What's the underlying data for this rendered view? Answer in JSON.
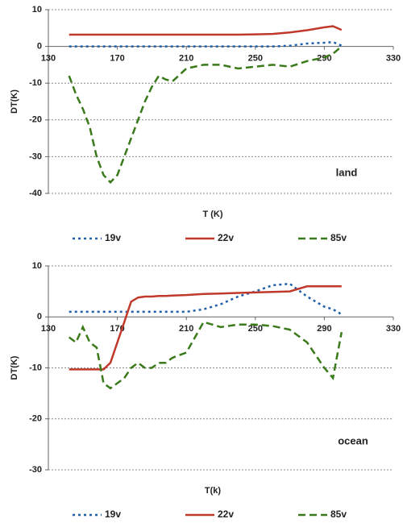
{
  "chart_data": [
    {
      "type": "line",
      "x_label": "T (K)",
      "y_label": "DT(K)",
      "annotation": "land",
      "xlim": [
        130,
        330
      ],
      "xticks": [
        130,
        170,
        210,
        250,
        290,
        330
      ],
      "ylim": [
        -40,
        10
      ],
      "yticks": [
        -40,
        -30,
        -20,
        -10,
        0,
        10
      ],
      "grid": true,
      "x": [
        142,
        146,
        150,
        154,
        158,
        162,
        166,
        170,
        174,
        178,
        182,
        186,
        190,
        194,
        198,
        202,
        210,
        220,
        230,
        240,
        250,
        260,
        270,
        280,
        290,
        295,
        300
      ],
      "series": [
        {
          "name": "19v",
          "color": "#1f5fa8",
          "style": "dotted",
          "values": [
            0,
            0,
            0,
            0,
            0,
            0,
            0,
            0,
            0,
            0,
            0,
            0,
            0,
            0,
            0,
            0,
            0,
            0,
            0,
            0,
            0,
            0,
            0.2,
            0.8,
            1.0,
            1.2,
            0.2
          ]
        },
        {
          "name": "22v",
          "color": "#c0392b",
          "style": "solid",
          "values": [
            3.2,
            3.2,
            3.2,
            3.2,
            3.2,
            3.2,
            3.2,
            3.2,
            3.2,
            3.2,
            3.2,
            3.2,
            3.2,
            3.2,
            3.2,
            3.2,
            3.2,
            3.2,
            3.2,
            3.2,
            3.3,
            3.4,
            3.8,
            4.4,
            5.2,
            5.5,
            4.5
          ]
        },
        {
          "name": "85v",
          "color": "#3a7a1a",
          "style": "dashed",
          "values": [
            -8,
            -13,
            -17,
            -22,
            -30,
            -35,
            -37,
            -35,
            -30,
            -25,
            -20,
            -15,
            -11,
            -8,
            -9,
            -9.5,
            -6,
            -5,
            -5,
            -6,
            -5.5,
            -5,
            -5.5,
            -4,
            -3,
            -2,
            0
          ]
        }
      ]
    },
    {
      "type": "line",
      "x_label": "T(k)",
      "y_label": "DT(K)",
      "annotation": "ocean",
      "xlim": [
        130,
        330
      ],
      "xticks": [
        130,
        170,
        210,
        250,
        290,
        330
      ],
      "ylim": [
        -30,
        10
      ],
      "yticks": [
        -30,
        -20,
        -10,
        0,
        10
      ],
      "grid": true,
      "x": [
        142,
        146,
        150,
        154,
        158,
        162,
        166,
        170,
        174,
        178,
        182,
        186,
        190,
        194,
        198,
        202,
        210,
        220,
        230,
        240,
        250,
        260,
        270,
        280,
        290,
        295,
        300
      ],
      "series": [
        {
          "name": "19v",
          "color": "#1f5fa8",
          "style": "dotted",
          "values": [
            1,
            1,
            1,
            1,
            1,
            1,
            1,
            1,
            1,
            1,
            1,
            1,
            1,
            1,
            1,
            1,
            1,
            1.5,
            2.5,
            4,
            5,
            6.2,
            6.5,
            4,
            2,
            1.5,
            0.5
          ]
        },
        {
          "name": "22v",
          "color": "#c0392b",
          "style": "solid",
          "values": [
            -10.3,
            -10.3,
            -10.3,
            -10.3,
            -10.3,
            -10.3,
            -9,
            -5,
            -1,
            3,
            3.8,
            4,
            4,
            4.1,
            4.1,
            4.2,
            4.3,
            4.5,
            4.6,
            4.7,
            4.8,
            4.9,
            5,
            6,
            6,
            6,
            6
          ]
        },
        {
          "name": "85v",
          "color": "#3a7a1a",
          "style": "dashed",
          "values": [
            -4,
            -5,
            -2,
            -5,
            -6,
            -13,
            -14,
            -13,
            -12,
            -10,
            -9,
            -10,
            -10,
            -9,
            -9,
            -8,
            -7,
            -1,
            -2,
            -1.5,
            -1.5,
            -1.8,
            -2.5,
            -5,
            -10,
            -12,
            -3
          ]
        }
      ]
    }
  ]
}
